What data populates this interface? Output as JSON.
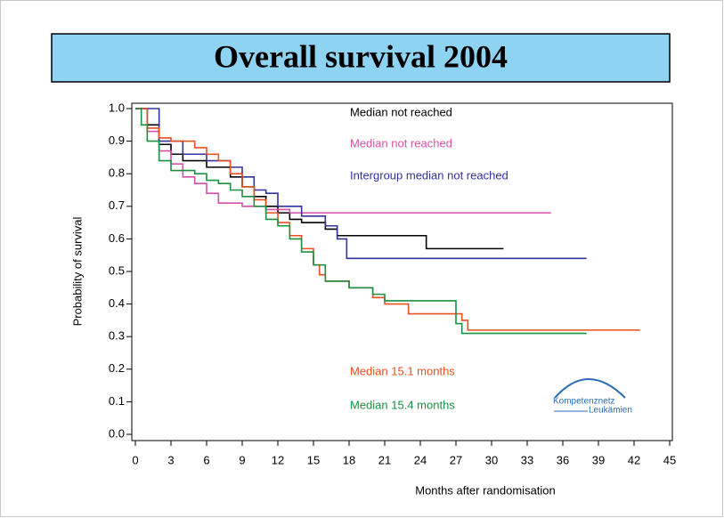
{
  "chart_data": {
    "type": "line",
    "title": "Overall survival 2004",
    "xlabel": "Months after randomisation",
    "ylabel": "Probability of survival",
    "xlim": [
      0,
      45
    ],
    "ylim": [
      0,
      1
    ],
    "xticks": [
      0,
      3,
      6,
      9,
      12,
      15,
      18,
      21,
      24,
      27,
      30,
      33,
      36,
      39,
      42,
      45
    ],
    "yticks": [
      {
        "value": 0,
        "label": "0.0"
      },
      0.1,
      0.2,
      0.3,
      0.4,
      0.5,
      0.6,
      0.7,
      0.8,
      0.9,
      {
        "value": 1,
        "label": "1.0"
      }
    ],
    "step": true,
    "series": [
      {
        "color": "#000000",
        "x": [
          0,
          1,
          2,
          3,
          4,
          6,
          8,
          9,
          10,
          11,
          12,
          13,
          14,
          16,
          17,
          20,
          24.5,
          31
        ],
        "values": [
          1.0,
          0.95,
          0.89,
          0.86,
          0.84,
          0.82,
          0.79,
          0.76,
          0.73,
          0.7,
          0.68,
          0.66,
          0.65,
          0.63,
          0.61,
          0.61,
          0.57,
          0.57
        ]
      },
      {
        "color": "#d94fa8",
        "x": [
          0,
          1,
          2,
          3,
          4,
          5,
          6,
          7,
          9,
          11,
          13,
          35
        ],
        "values": [
          1.0,
          0.93,
          0.87,
          0.83,
          0.79,
          0.77,
          0.74,
          0.71,
          0.7,
          0.69,
          0.68,
          0.68
        ]
      },
      {
        "color": "#33339a",
        "x": [
          0,
          2,
          4,
          6,
          8,
          9,
          10,
          11,
          12,
          14,
          16,
          17,
          17.8,
          38
        ],
        "values": [
          1.0,
          0.9,
          0.86,
          0.84,
          0.82,
          0.79,
          0.75,
          0.74,
          0.7,
          0.67,
          0.64,
          0.6,
          0.54,
          0.54
        ]
      },
      {
        "color": "#e8501e",
        "x": [
          0,
          1,
          2,
          3,
          5,
          6,
          7,
          8,
          9,
          10,
          11,
          12,
          13,
          14,
          15,
          15.5,
          16,
          18,
          20,
          21,
          23,
          27,
          27.5,
          28,
          42.5
        ],
        "values": [
          1.0,
          0.94,
          0.91,
          0.9,
          0.88,
          0.86,
          0.84,
          0.8,
          0.76,
          0.72,
          0.68,
          0.65,
          0.61,
          0.57,
          0.52,
          0.49,
          0.47,
          0.45,
          0.42,
          0.4,
          0.37,
          0.37,
          0.35,
          0.32,
          0.32
        ]
      },
      {
        "color": "#1a9040",
        "x": [
          0,
          0.5,
          1,
          2,
          3,
          5,
          6,
          7,
          8,
          9,
          10,
          11,
          12,
          13,
          14,
          15,
          16,
          18,
          20,
          21,
          27,
          27.5,
          38
        ],
        "values": [
          1.0,
          0.95,
          0.9,
          0.84,
          0.81,
          0.8,
          0.78,
          0.77,
          0.75,
          0.73,
          0.7,
          0.66,
          0.64,
          0.6,
          0.56,
          0.52,
          0.47,
          0.45,
          0.43,
          0.41,
          0.34,
          0.31,
          0.31
        ]
      }
    ],
    "annotations": [
      {
        "text": "Median not reached",
        "color": "#000000"
      },
      {
        "text": "Median not reached",
        "color": "#d94fa8"
      },
      {
        "text": "Intergroup median not reached",
        "color": "#33339a"
      },
      {
        "text": "Median 15.1 months",
        "color": "#e8501e"
      },
      {
        "text": "Median 15.4 months",
        "color": "#1a9040"
      }
    ]
  },
  "logo": {
    "line1": "Kompetenznetz",
    "line2": "Leukämien"
  }
}
